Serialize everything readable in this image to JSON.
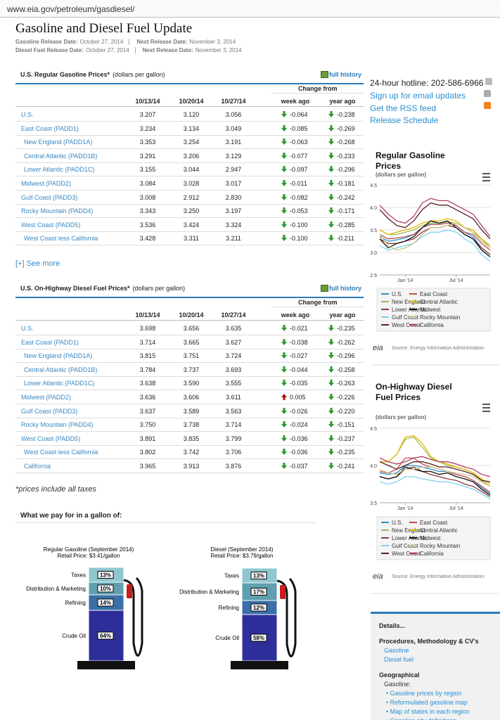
{
  "browser": {
    "url": "www.eia.gov/petroleum/gasdiesel/"
  },
  "header": {
    "title": "Gasoline and Diesel Fuel Update",
    "release_lines": [
      {
        "label": "Gasoline Release Date:",
        "date": "October 27, 2014",
        "next_label": "Next Release Date:",
        "next_date": "November 3, 2014"
      },
      {
        "label": "Diesel Fuel Release Date:",
        "date": "October 27, 2014",
        "next_label": "Next Release Date:",
        "next_date": "November 3, 2014"
      }
    ]
  },
  "tables": [
    {
      "title": "U.S. Regular Gasoline Prices*",
      "unit": "(dollars per gallon)",
      "link": "full history",
      "group_header": "Change from",
      "columns": [
        "10/13/14",
        "10/20/14",
        "10/27/14",
        "week ago",
        "year ago"
      ],
      "rows": [
        {
          "name": "U.S.",
          "indent": false,
          "values": [
            "3.207",
            "3.120",
            "3.056",
            "-0.064",
            "-0.238"
          ]
        },
        {
          "name": "East Coast (PADD1)",
          "indent": false,
          "values": [
            "3.234",
            "3.134",
            "3.049",
            "-0.085",
            "-0.269"
          ]
        },
        {
          "name": "New England (PADD1A)",
          "indent": true,
          "values": [
            "3.353",
            "3.254",
            "3.191",
            "-0.063",
            "-0.268"
          ]
        },
        {
          "name": "Central Atlantic (PADD1B)",
          "indent": true,
          "values": [
            "3.291",
            "3.206",
            "3.129",
            "-0.077",
            "-0.233"
          ]
        },
        {
          "name": "Lower Atlantic (PADD1C)",
          "indent": true,
          "values": [
            "3.155",
            "3.044",
            "2.947",
            "-0.097",
            "-0.296"
          ]
        },
        {
          "name": "Midwest (PADD2)",
          "indent": false,
          "values": [
            "3.084",
            "3.028",
            "3.017",
            "-0.011",
            "-0.181"
          ]
        },
        {
          "name": "Gulf Coast (PADD3)",
          "indent": false,
          "values": [
            "3.008",
            "2.912",
            "2.830",
            "-0.082",
            "-0.242"
          ]
        },
        {
          "name": "Rocky Mountain (PADD4)",
          "indent": false,
          "values": [
            "3.343",
            "3.250",
            "3.197",
            "-0.053",
            "-0.171"
          ]
        },
        {
          "name": "West Coast (PADD5)",
          "indent": false,
          "values": [
            "3.536",
            "3.424",
            "3.324",
            "-0.100",
            "-0.285"
          ]
        },
        {
          "name": "West Coast less California",
          "indent": true,
          "values": [
            "3.428",
            "3.311",
            "3.211",
            "-0.100",
            "-0.211"
          ]
        }
      ]
    },
    {
      "title": "U.S. On-Highway Diesel Fuel Prices*",
      "unit": "(dollars per gallon)",
      "link": "full history",
      "group_header": "Change from",
      "columns": [
        "10/13/14",
        "10/20/14",
        "10/27/14",
        "week ago",
        "year ago"
      ],
      "rows": [
        {
          "name": "U.S.",
          "indent": false,
          "values": [
            "3.698",
            "3.656",
            "3.635",
            "-0.021",
            "-0.235"
          ]
        },
        {
          "name": "East Coast (PADD1)",
          "indent": false,
          "values": [
            "3.714",
            "3.665",
            "3.627",
            "-0.038",
            "-0.262"
          ]
        },
        {
          "name": "New England (PADD1A)",
          "indent": true,
          "values": [
            "3.815",
            "3.751",
            "3.724",
            "-0.027",
            "-0.296"
          ]
        },
        {
          "name": "Central Atlantic (PADD1B)",
          "indent": true,
          "values": [
            "3.784",
            "3.737",
            "3.693",
            "-0.044",
            "-0.258"
          ]
        },
        {
          "name": "Lower Atlantic (PADD1C)",
          "indent": true,
          "values": [
            "3.638",
            "3.590",
            "3.555",
            "-0.035",
            "-0.263"
          ]
        },
        {
          "name": "Midwest (PADD2)",
          "indent": false,
          "values": [
            "3.636",
            "3.606",
            "3.611",
            "0.005",
            "-0.226"
          ]
        },
        {
          "name": "Gulf Coast (PADD3)",
          "indent": false,
          "values": [
            "3.637",
            "3.589",
            "3.563",
            "-0.026",
            "-0.220"
          ]
        },
        {
          "name": "Rocky Mountain (PADD4)",
          "indent": false,
          "values": [
            "3.750",
            "3.738",
            "3.714",
            "-0.024",
            "-0.151"
          ]
        },
        {
          "name": "West Coast (PADD5)",
          "indent": false,
          "values": [
            "3.891",
            "3.835",
            "3.799",
            "-0.036",
            "-0.237"
          ]
        },
        {
          "name": "West Coast less California",
          "indent": true,
          "values": [
            "3.802",
            "3.742",
            "3.706",
            "-0.036",
            "-0.235"
          ]
        },
        {
          "name": "California",
          "indent": true,
          "values": [
            "3.965",
            "3.913",
            "3.876",
            "-0.037",
            "-0.241"
          ]
        }
      ]
    }
  ],
  "see_more": "[+] See more",
  "footnote": "*prices include all taxes",
  "breakdown": {
    "title": "What we pay for in a gallon of:",
    "pumps": [
      {
        "title": "Regular Gasoline (September 2014)",
        "price": "Retail Price: $3.41/gallon",
        "categories": [
          "Taxes",
          "Distribution & Marketing",
          "Refining",
          "Crude Oil"
        ],
        "values": [
          13,
          10,
          14,
          64
        ],
        "value_labels": [
          "13%",
          "10%",
          "14%",
          "64%"
        ]
      },
      {
        "title": "Diesel (September 2014)",
        "price": "Retail Price: $3.79/gallon",
        "categories": [
          "Taxes",
          "Distribution & Marketing",
          "Refining",
          "Crude Oil"
        ],
        "values": [
          13,
          17,
          12,
          58
        ],
        "value_labels": [
          "13%",
          "17%",
          "12%",
          "58%"
        ]
      }
    ]
  },
  "sidebar": {
    "hotline": "24-hour hotline: 202-586-6966",
    "links": [
      "Sign up for email updates",
      "Get the RSS feed",
      "Release Schedule"
    ]
  },
  "chart_data": [
    {
      "type": "line",
      "title": "Regular Gasoline Prices",
      "subtitle": "(dollars per gallon)",
      "logo": "eia",
      "source": "Source: Energy Information Administration",
      "categories": [
        null,
        null,
        null,
        "Jan '14",
        null,
        null,
        null,
        null,
        null,
        "Jul '14",
        null,
        null,
        null,
        null
      ],
      "ylim": [
        2.5,
        4.5
      ],
      "yticks": [
        2.5,
        {
          "value": 3,
          "label": "3.0"
        },
        3.5,
        {
          "value": 4,
          "label": "4.0"
        },
        4.5
      ],
      "grid": true,
      "series": [
        {
          "name": "U.S.",
          "color": "#2b8fd0",
          "values": [
            3.35,
            3.25,
            3.28,
            3.32,
            3.4,
            3.55,
            3.65,
            3.65,
            3.68,
            3.6,
            3.45,
            3.35,
            3.1,
            2.95
          ]
        },
        {
          "name": "East Coast",
          "color": "#c0504d",
          "values": [
            3.4,
            3.3,
            3.32,
            3.35,
            3.4,
            3.55,
            3.62,
            3.62,
            3.65,
            3.6,
            3.45,
            3.4,
            3.2,
            3.05
          ]
        },
        {
          "name": "New England",
          "color": "#9bbb59",
          "values": [
            3.5,
            3.4,
            3.4,
            3.45,
            3.5,
            3.6,
            3.65,
            3.65,
            3.68,
            3.65,
            3.55,
            3.45,
            3.3,
            3.15
          ]
        },
        {
          "name": "Central Atlantic",
          "color": "#e8b800",
          "values": [
            3.5,
            3.4,
            3.45,
            3.5,
            3.55,
            3.65,
            3.7,
            3.7,
            3.75,
            3.7,
            3.55,
            3.5,
            3.3,
            3.1
          ]
        },
        {
          "name": "Lower Atlantic",
          "color": "#8b3a3a",
          "values": [
            3.3,
            3.2,
            3.2,
            3.25,
            3.3,
            3.45,
            3.55,
            3.55,
            3.6,
            3.55,
            3.4,
            3.3,
            3.1,
            2.95
          ]
        },
        {
          "name": "Midwest",
          "color": "#111111",
          "values": [
            3.3,
            3.1,
            3.2,
            3.25,
            3.35,
            3.55,
            3.7,
            3.65,
            3.7,
            3.55,
            3.4,
            3.3,
            3.05,
            2.9
          ]
        },
        {
          "name": "Gulf Coast",
          "color": "#7fd0f0",
          "values": [
            3.15,
            3.05,
            3.1,
            3.15,
            3.2,
            3.35,
            3.45,
            3.45,
            3.5,
            3.45,
            3.3,
            3.2,
            2.95,
            2.8
          ]
        },
        {
          "name": "Rocky Mountain",
          "color": "#c8c88a",
          "values": [
            3.4,
            3.15,
            3.05,
            3.1,
            3.2,
            3.4,
            3.55,
            3.55,
            3.6,
            3.65,
            3.55,
            3.45,
            3.25,
            3.1
          ]
        },
        {
          "name": "West Coast",
          "color": "#5a2020",
          "values": [
            3.95,
            3.75,
            3.6,
            3.55,
            3.7,
            3.95,
            4.1,
            4.05,
            4.05,
            3.95,
            3.85,
            3.75,
            3.5,
            3.3
          ]
        },
        {
          "name": "California",
          "color": "#b04060",
          "values": [
            4.05,
            3.85,
            3.7,
            3.65,
            3.8,
            4.1,
            4.2,
            4.15,
            4.15,
            4.05,
            3.95,
            3.85,
            3.6,
            3.35
          ]
        }
      ]
    },
    {
      "type": "line",
      "title": "On-Highway Diesel Fuel Prices",
      "subtitle": "(dollars per gallon)",
      "logo": "eia",
      "source": "Source: Energy Information Administration",
      "categories": [
        null,
        null,
        null,
        "Jan '14",
        null,
        null,
        null,
        null,
        null,
        "Jul '14",
        null,
        null,
        null,
        null
      ],
      "ylim": [
        3.5,
        4.5
      ],
      "yticks": [
        3.5,
        {
          "value": 4,
          "label": "4.0"
        },
        4.5
      ],
      "grid": true,
      "series": [
        {
          "name": "U.S.",
          "color": "#2b8fd0",
          "values": [
            3.9,
            3.88,
            3.9,
            4.0,
            4.0,
            3.98,
            3.95,
            3.92,
            3.92,
            3.88,
            3.85,
            3.8,
            3.7,
            3.62
          ]
        },
        {
          "name": "East Coast",
          "color": "#c0504d",
          "values": [
            3.92,
            3.9,
            3.95,
            4.1,
            4.1,
            4.02,
            3.98,
            3.95,
            3.92,
            3.88,
            3.85,
            3.8,
            3.72,
            3.64
          ]
        },
        {
          "name": "New England",
          "color": "#9bbb59",
          "values": [
            4.05,
            4.05,
            4.15,
            4.35,
            4.38,
            4.25,
            4.1,
            4.05,
            4.0,
            3.98,
            3.95,
            3.9,
            3.8,
            3.72
          ]
        },
        {
          "name": "Central Atlantic",
          "color": "#e8b800",
          "values": [
            4.05,
            4.05,
            4.15,
            4.38,
            4.4,
            4.3,
            4.12,
            4.05,
            4.02,
            3.98,
            3.95,
            3.9,
            3.82,
            3.75
          ]
        },
        {
          "name": "Lower Atlantic",
          "color": "#8b3a3a",
          "values": [
            3.85,
            3.82,
            3.85,
            3.95,
            3.98,
            3.92,
            3.88,
            3.85,
            3.82,
            3.8,
            3.75,
            3.72,
            3.65,
            3.58
          ]
        },
        {
          "name": "Midwest",
          "color": "#111111",
          "values": [
            3.85,
            3.82,
            3.85,
            3.98,
            3.95,
            3.92,
            3.92,
            3.88,
            3.9,
            3.85,
            3.82,
            3.78,
            3.68,
            3.6
          ]
        },
        {
          "name": "Gulf Coast",
          "color": "#7fd0f0",
          "values": [
            3.78,
            3.75,
            3.78,
            3.85,
            3.85,
            3.82,
            3.8,
            3.78,
            3.78,
            3.75,
            3.72,
            3.68,
            3.62,
            3.55
          ]
        },
        {
          "name": "Rocky Mountain",
          "color": "#c8c88a",
          "values": [
            3.95,
            3.9,
            3.88,
            3.95,
            3.95,
            3.98,
            3.98,
            3.95,
            3.92,
            3.9,
            3.88,
            3.85,
            3.78,
            3.72
          ]
        },
        {
          "name": "West Coast",
          "color": "#5a2020",
          "values": [
            4.05,
            4.0,
            3.95,
            4.0,
            4.05,
            4.05,
            4.02,
            3.98,
            3.98,
            3.95,
            3.92,
            3.88,
            3.8,
            3.78
          ]
        },
        {
          "name": "California",
          "color": "#b04060",
          "values": [
            4.1,
            4.05,
            4.02,
            4.05,
            4.1,
            4.12,
            4.08,
            4.05,
            4.05,
            4.02,
            3.98,
            3.95,
            3.88,
            3.85
          ]
        }
      ]
    }
  ],
  "details": {
    "title": "Details...",
    "sections": [
      {
        "heading": "Procedures, Methodology & CV's",
        "items": [
          "Gasoline",
          "Diesel fuel"
        ]
      },
      {
        "heading": "Geographical",
        "sub": "Gasoline:",
        "items": [
          "• Gasoline prices by region",
          "• Reformulated gasoline map",
          "• Map of states in each region",
          "• Gasoline city definitions"
        ]
      }
    ]
  }
}
